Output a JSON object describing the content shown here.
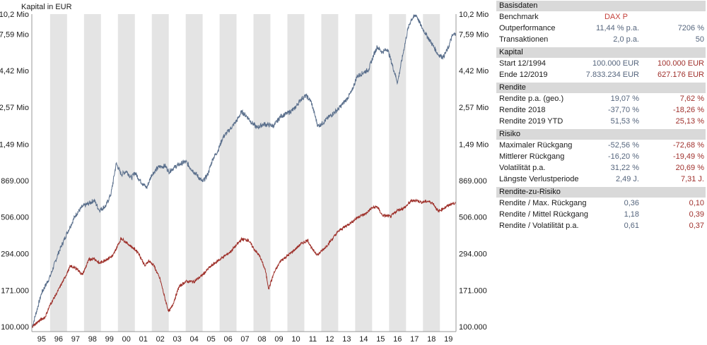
{
  "chart_data": {
    "type": "line",
    "title": "Kapital in EUR",
    "y_scale": "log",
    "ylim": [
      100000,
      10200000
    ],
    "y_ticks": [
      {
        "value": 100000,
        "label": "100.000"
      },
      {
        "value": 171000,
        "label": "171.000"
      },
      {
        "value": 294000,
        "label": "294.000"
      },
      {
        "value": 506000,
        "label": "506.000"
      },
      {
        "value": 869000,
        "label": "869.000"
      },
      {
        "value": 1490000,
        "label": "1,49 Mio"
      },
      {
        "value": 2570000,
        "label": "2,57 Mio"
      },
      {
        "value": 4420000,
        "label": "4,42 Mio"
      },
      {
        "value": 7590000,
        "label": "7,59 Mio"
      },
      {
        "value": 10200000,
        "label": "10,2 Mio"
      }
    ],
    "x_labels": [
      "95",
      "96",
      "97",
      "98",
      "99",
      "00",
      "01",
      "02",
      "03",
      "04",
      "05",
      "06",
      "07",
      "08",
      "09",
      "10",
      "11",
      "12",
      "13",
      "14",
      "15",
      "16",
      "17",
      "18",
      "19"
    ],
    "grid": "alternating-year-bands",
    "colors": {
      "portfolio": "#5a6f8c",
      "benchmark": "#9e302a",
      "band": "#e4e4e4"
    },
    "series": [
      {
        "key": "portfolio",
        "x": [
          1994.95,
          1995.5,
          1996.0,
          1996.5,
          1997.0,
          1997.5,
          1997.9,
          1998.3,
          1998.6,
          1998.9,
          1999.3,
          1999.6,
          1999.9,
          2000.2,
          2000.5,
          2000.8,
          2001.0,
          2001.3,
          2001.7,
          2002.0,
          2002.4,
          2002.8,
          2003.0,
          2003.3,
          2003.6,
          2004.0,
          2004.3,
          2004.6,
          2005.0,
          2005.3,
          2005.6,
          2005.9,
          2006.2,
          2006.6,
          2007.0,
          2007.3,
          2007.6,
          2007.9,
          2008.2,
          2008.6,
          2008.9,
          2009.2,
          2009.6,
          2010.0,
          2010.4,
          2010.8,
          2011.1,
          2011.4,
          2011.8,
          2012.0,
          2012.5,
          2013.0,
          2013.5,
          2013.8,
          2014.1,
          2014.5,
          2014.8,
          2015.1,
          2015.3,
          2015.6,
          2015.9,
          2016.1,
          2016.5,
          2016.8,
          2017.1,
          2017.3,
          2017.6,
          2017.9,
          2018.2,
          2018.6,
          2018.9,
          2019.2,
          2019.5,
          2019.7,
          2019.92
        ],
        "y": [
          100000,
          165000,
          210000,
          300000,
          400000,
          520000,
          590000,
          620000,
          650000,
          560000,
          600000,
          720000,
          1120000,
          950000,
          1000000,
          900000,
          980000,
          870000,
          780000,
          950000,
          1060000,
          1080000,
          990000,
          1050000,
          1100000,
          1150000,
          1040000,
          960000,
          850000,
          950000,
          1200000,
          1350000,
          1650000,
          1850000,
          2100000,
          2400000,
          2250000,
          2050000,
          1900000,
          2000000,
          1980000,
          1950000,
          2250000,
          2350000,
          2500000,
          2900000,
          3050000,
          2800000,
          1950000,
          2000000,
          2250000,
          2500000,
          2900000,
          3250000,
          4050000,
          4300000,
          4500000,
          5600000,
          6300000,
          5800000,
          6100000,
          5200000,
          3700000,
          5500000,
          8100000,
          9400000,
          10100000,
          8500000,
          7500000,
          6400000,
          5600000,
          5400000,
          6200000,
          7300000,
          7700000
        ]
      },
      {
        "key": "benchmark",
        "x": [
          1994.95,
          1995.3,
          1995.7,
          1996.0,
          1996.4,
          1996.8,
          1997.2,
          1997.6,
          1997.9,
          1998.3,
          1998.6,
          1998.9,
          1999.3,
          1999.7,
          2000.0,
          2000.2,
          2000.6,
          2000.9,
          2001.2,
          2001.6,
          2001.8,
          2002.1,
          2002.5,
          2002.8,
          2003.0,
          2003.2,
          2003.6,
          2004.0,
          2004.5,
          2005.0,
          2005.4,
          2005.8,
          2006.2,
          2006.6,
          2007.0,
          2007.3,
          2007.7,
          2008.0,
          2008.4,
          2008.7,
          2008.9,
          2009.2,
          2009.6,
          2010.0,
          2010.4,
          2010.8,
          2011.2,
          2011.5,
          2011.8,
          2012.2,
          2012.6,
          2013.0,
          2013.4,
          2013.8,
          2014.2,
          2014.6,
          2015.0,
          2015.3,
          2015.6,
          2016.1,
          2016.5,
          2016.9,
          2017.3,
          2017.6,
          2017.9,
          2018.3,
          2018.6,
          2018.9,
          2019.2,
          2019.6,
          2019.92
        ],
        "y": [
          100000,
          108000,
          115000,
          138000,
          165000,
          200000,
          245000,
          235000,
          215000,
          270000,
          275000,
          255000,
          270000,
          285000,
          335000,
          370000,
          340000,
          320000,
          300000,
          245000,
          265000,
          250000,
          200000,
          148000,
          125000,
          135000,
          180000,
          195000,
          195000,
          215000,
          240000,
          260000,
          280000,
          300000,
          335000,
          365000,
          360000,
          320000,
          280000,
          230000,
          175000,
          220000,
          265000,
          285000,
          310000,
          340000,
          360000,
          310000,
          290000,
          320000,
          360000,
          410000,
          440000,
          470000,
          510000,
          530000,
          580000,
          590000,
          520000,
          510000,
          560000,
          580000,
          640000,
          650000,
          630000,
          640000,
          620000,
          550000,
          575000,
          610000,
          627000
        ]
      }
    ]
  },
  "panel": {
    "sections": [
      {
        "title": "Basisdaten",
        "rows": [
          {
            "label": "Benchmark",
            "v1": "DAX P",
            "v2": "",
            "type": "bench"
          },
          {
            "label": "Outperformance",
            "v1": "11,44 % p.a.",
            "v2": "7206 %",
            "type": "plain"
          },
          {
            "label": "Transaktionen",
            "v1": "2,0 p.a.",
            "v2": "50",
            "type": "plain"
          }
        ]
      },
      {
        "title": "Kapital",
        "rows": [
          {
            "label": "Start  12/1994",
            "v1": "100.000 EUR",
            "v2": "100.000 EUR"
          },
          {
            "label": "Ende  12/2019",
            "v1": "7.833.234 EUR",
            "v2": "627.176 EUR"
          }
        ]
      },
      {
        "title": "Rendite",
        "rows": [
          {
            "label": "Rendite p.a. (geo.)",
            "v1": "19,07 %",
            "v2": "7,62 %"
          },
          {
            "label": "Rendite 2018",
            "v1": "-37,70 %",
            "v2": "-18,26 %"
          },
          {
            "label": "Rendite 2019 YTD",
            "v1": "51,53 %",
            "v2": "25,13 %"
          }
        ]
      },
      {
        "title": "Risiko",
        "rows": [
          {
            "label": "Maximaler Rückgang",
            "v1": "-52,56 %",
            "v2": "-72,68 %"
          },
          {
            "label": "Mittlerer Rückgang",
            "v1": "-16,20 %",
            "v2": "-19,49 %"
          },
          {
            "label": "Volatilität p.a.",
            "v1": "31,22 %",
            "v2": "20,69 %"
          },
          {
            "label": "Längste Verlustperiode",
            "v1": "2,49 J.",
            "v2": "7,31 J."
          }
        ]
      },
      {
        "title": "Rendite-zu-Risiko",
        "rows": [
          {
            "label": "Rendite / Max. Rückgang",
            "v1": "0,36",
            "v2": "0,10"
          },
          {
            "label": "Rendite / Mittel Rückgang",
            "v1": "1,18",
            "v2": "0,39"
          },
          {
            "label": "Rendite / Volatilität p.a.",
            "v1": "0,61",
            "v2": "0,37"
          }
        ]
      }
    ]
  }
}
